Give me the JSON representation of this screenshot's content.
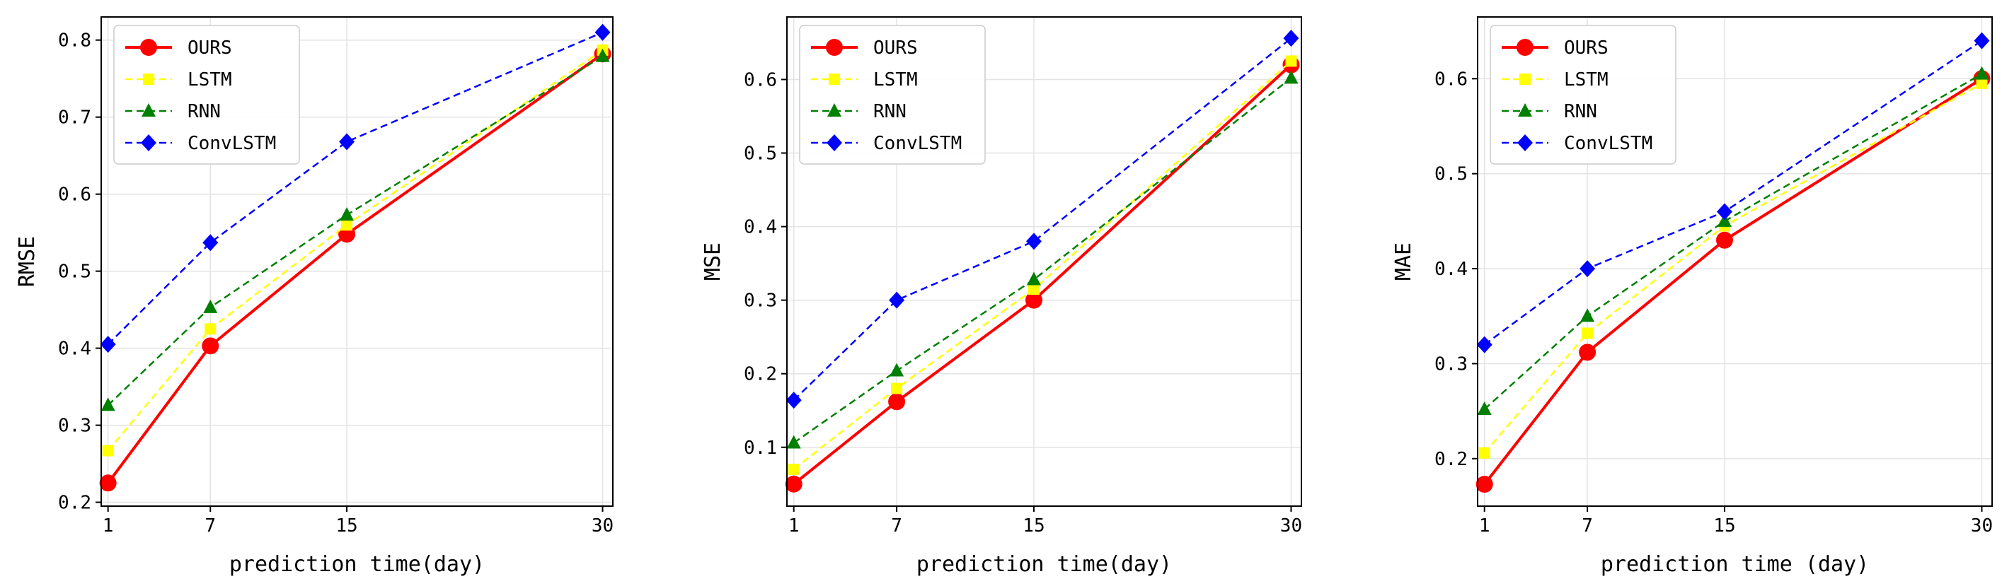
{
  "figure": {
    "panel_count": 3
  },
  "chart_data": [
    {
      "type": "line",
      "title": "",
      "xlabel": "prediction time(day)",
      "ylabel": "RMSE",
      "x": [
        1,
        7,
        15,
        30
      ],
      "xticks": [
        "1",
        "7",
        "15",
        "30"
      ],
      "xlim": [
        0.6,
        30.6
      ],
      "ylim": [
        0.195,
        0.83
      ],
      "yticks": [
        "0.2",
        "0.3",
        "0.4",
        "0.5",
        "0.6",
        "0.7",
        "0.8"
      ],
      "grid": true,
      "legend": "top-left",
      "series": [
        {
          "name": "OURS",
          "values": [
            0.225,
            0.403,
            0.548,
            0.782
          ],
          "color": "#ff0000",
          "marker": "circle",
          "dashed": false
        },
        {
          "name": "LSTM",
          "values": [
            0.267,
            0.425,
            0.56,
            0.787
          ],
          "color": "#ffff00",
          "marker": "square",
          "dashed": true
        },
        {
          "name": "RNN",
          "values": [
            0.326,
            0.453,
            0.573,
            0.779
          ],
          "color": "#008000",
          "marker": "triangle",
          "dashed": true
        },
        {
          "name": "ConvLSTM",
          "values": [
            0.405,
            0.537,
            0.668,
            0.81
          ],
          "color": "#0000ff",
          "marker": "diamond",
          "dashed": true
        }
      ]
    },
    {
      "type": "line",
      "title": "",
      "xlabel": "prediction time(day)",
      "ylabel": "MSE",
      "x": [
        1,
        7,
        15,
        30
      ],
      "xticks": [
        "1",
        "7",
        "15",
        "30"
      ],
      "xlim": [
        0.6,
        30.6
      ],
      "ylim": [
        0.02,
        0.685
      ],
      "yticks": [
        "0.1",
        "0.2",
        "0.3",
        "0.4",
        "0.5",
        "0.6"
      ],
      "grid": true,
      "legend": "top-left",
      "series": [
        {
          "name": "OURS",
          "values": [
            0.05,
            0.162,
            0.3,
            0.62
          ],
          "color": "#ff0000",
          "marker": "circle",
          "dashed": false
        },
        {
          "name": "LSTM",
          "values": [
            0.07,
            0.18,
            0.315,
            0.625
          ],
          "color": "#ffff00",
          "marker": "square",
          "dashed": true
        },
        {
          "name": "RNN",
          "values": [
            0.106,
            0.204,
            0.328,
            0.602
          ],
          "color": "#008000",
          "marker": "triangle",
          "dashed": true
        },
        {
          "name": "ConvLSTM",
          "values": [
            0.164,
            0.3,
            0.38,
            0.656
          ],
          "color": "#0000ff",
          "marker": "diamond",
          "dashed": true
        }
      ]
    },
    {
      "type": "line",
      "title": "",
      "xlabel": "prediction time (day)",
      "ylabel": "MAE",
      "x": [
        1,
        7,
        15,
        30
      ],
      "xticks": [
        "1",
        "7",
        "15",
        "30"
      ],
      "xlim": [
        0.6,
        30.6
      ],
      "ylim": [
        0.15,
        0.665
      ],
      "yticks": [
        "0.2",
        "0.3",
        "0.4",
        "0.5",
        "0.6"
      ],
      "grid": true,
      "legend": "top-left",
      "series": [
        {
          "name": "OURS",
          "values": [
            0.173,
            0.312,
            0.43,
            0.6
          ],
          "color": "#ff0000",
          "marker": "circle",
          "dashed": false
        },
        {
          "name": "LSTM",
          "values": [
            0.206,
            0.332,
            0.445,
            0.595
          ],
          "color": "#ffff00",
          "marker": "square",
          "dashed": true
        },
        {
          "name": "RNN",
          "values": [
            0.252,
            0.35,
            0.45,
            0.605
          ],
          "color": "#008000",
          "marker": "triangle",
          "dashed": true
        },
        {
          "name": "ConvLSTM",
          "values": [
            0.32,
            0.4,
            0.46,
            0.64
          ],
          "color": "#0000ff",
          "marker": "diamond",
          "dashed": true
        }
      ]
    }
  ]
}
